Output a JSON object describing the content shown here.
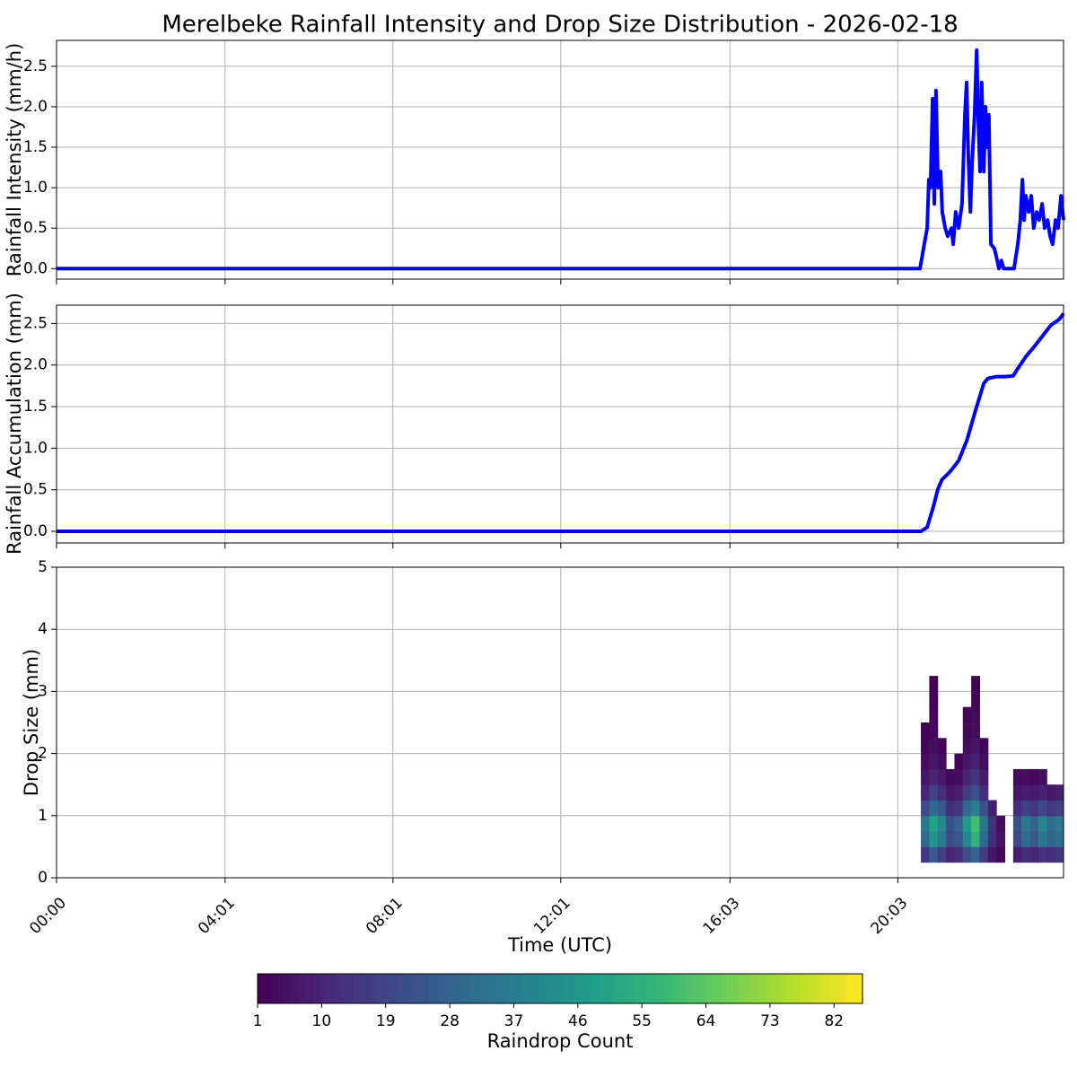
{
  "chart_data": [
    {
      "type": "line",
      "ylabel": "Rainfall Intensity (mm/h)",
      "color": "#0000ff",
      "grid": true,
      "xlim": [
        0,
        24
      ],
      "ylim": [
        -0.13,
        2.82
      ],
      "yticks": [
        {
          "value": 0,
          "label": "0.0"
        },
        0.5,
        {
          "value": 1,
          "label": "1.0"
        },
        1.5,
        {
          "value": 2,
          "label": "2.0"
        },
        2.5
      ],
      "x": [
        0,
        20.58,
        20.68,
        20.75,
        20.79,
        20.83,
        20.88,
        20.92,
        20.96,
        21.01,
        21.07,
        21.11,
        21.18,
        21.24,
        21.33,
        21.37,
        21.43,
        21.5,
        21.58,
        21.65,
        21.69,
        21.73,
        21.78,
        21.82,
        21.88,
        21.93,
        21.97,
        22.01,
        22.05,
        22.1,
        22.14,
        22.18,
        22.22,
        22.27,
        22.35,
        22.42,
        22.46,
        22.52,
        22.57,
        22.82,
        22.91,
        22.97,
        23.02,
        23.06,
        23.1,
        23.17,
        23.23,
        23.29,
        23.36,
        23.42,
        23.49,
        23.55,
        23.62,
        23.68,
        23.74,
        23.81,
        23.87,
        23.94,
        24.0
      ],
      "values": [
        0,
        0,
        0.3,
        0.5,
        1.1,
        1.0,
        2.1,
        0.8,
        2.2,
        1.0,
        1.2,
        0.7,
        0.5,
        0.4,
        0.5,
        0.3,
        0.7,
        0.5,
        0.8,
        1.9,
        2.3,
        1.4,
        0.7,
        1.3,
        1.9,
        2.7,
        1.8,
        1.2,
        2.3,
        1.2,
        2.0,
        1.5,
        1.9,
        0.3,
        0.25,
        0.1,
        0,
        0.1,
        0,
        0,
        0.3,
        0.6,
        1.1,
        0.6,
        0.9,
        0.7,
        0.9,
        0.5,
        0.7,
        0.6,
        0.8,
        0.5,
        0.6,
        0.4,
        0.3,
        0.6,
        0.5,
        0.9,
        0.6
      ]
    },
    {
      "type": "line",
      "ylabel": "Rainfall Accumulation (mm)",
      "color": "#0000ff",
      "grid": true,
      "xlim": [
        0,
        24
      ],
      "ylim": [
        -0.14,
        2.72
      ],
      "yticks": [
        {
          "value": 0,
          "label": "0.0"
        },
        0.5,
        {
          "value": 1,
          "label": "1.0"
        },
        1.5,
        {
          "value": 2,
          "label": "2.0"
        },
        2.5
      ],
      "x": [
        0,
        20.6,
        20.75,
        20.9,
        21.0,
        21.1,
        21.3,
        21.5,
        21.7,
        21.9,
        22.1,
        22.2,
        22.4,
        22.6,
        22.8,
        22.9,
        23.1,
        23.3,
        23.5,
        23.7,
        23.9,
        24.0
      ],
      "values": [
        0,
        0,
        0.05,
        0.3,
        0.5,
        0.62,
        0.72,
        0.85,
        1.1,
        1.45,
        1.78,
        1.84,
        1.86,
        1.86,
        1.87,
        1.95,
        2.1,
        2.22,
        2.35,
        2.48,
        2.55,
        2.62
      ]
    },
    {
      "type": "heatmap",
      "title": "Merelbeke Rainfall Intensity and Drop Size Distribution - 2026-02-18",
      "xlabel": "Time (UTC)",
      "ylabel": "Drop Size (mm)",
      "grid": true,
      "colormap": "viridis",
      "xlim": [
        0,
        24
      ],
      "ylim": [
        0,
        5
      ],
      "yticks": [
        0,
        1,
        2,
        3,
        4,
        5
      ],
      "xticks": [
        {
          "value": 0,
          "label": "00:00"
        },
        {
          "value": 4.017,
          "label": "04:01"
        },
        {
          "value": 8.017,
          "label": "08:01"
        },
        {
          "value": 12.017,
          "label": "12:01"
        },
        {
          "value": 16.05,
          "label": "16:03"
        },
        {
          "value": 20.05,
          "label": "20:03"
        }
      ],
      "x_bins": [
        20.6,
        20.8,
        21.0,
        21.2,
        21.4,
        21.6,
        21.8,
        22.0,
        22.2,
        22.4,
        22.6,
        22.8,
        23.0,
        23.2,
        23.4,
        23.6,
        23.8,
        24.0
      ],
      "y_bins": [
        0.25,
        0.5,
        0.75,
        1.0,
        1.25,
        1.5,
        1.75,
        2.0,
        2.25,
        2.5,
        2.75,
        3.0,
        3.25
      ],
      "values": [
        [
          15,
          25,
          18,
          10,
          12,
          22,
          28,
          16,
          6,
          3,
          null,
          8,
          12,
          10,
          14,
          12,
          15
        ],
        [
          30,
          45,
          35,
          20,
          25,
          40,
          55,
          30,
          12,
          5,
          null,
          20,
          30,
          25,
          35,
          28,
          32
        ],
        [
          35,
          50,
          40,
          22,
          28,
          48,
          60,
          35,
          14,
          4,
          null,
          22,
          35,
          28,
          40,
          30,
          35
        ],
        [
          20,
          30,
          25,
          12,
          15,
          30,
          38,
          22,
          8,
          null,
          null,
          12,
          18,
          15,
          20,
          15,
          18
        ],
        [
          10,
          18,
          12,
          6,
          8,
          16,
          22,
          12,
          null,
          null,
          null,
          6,
          8,
          7,
          9,
          6,
          8
        ],
        [
          6,
          10,
          7,
          3,
          4,
          10,
          14,
          7,
          null,
          null,
          null,
          3,
          4,
          3,
          4,
          null,
          null
        ],
        [
          4,
          6,
          4,
          null,
          2,
          6,
          9,
          4,
          null,
          null,
          null,
          null,
          null,
          null,
          null,
          null,
          null
        ],
        [
          2,
          4,
          2,
          null,
          null,
          4,
          6,
          2,
          null,
          null,
          null,
          null,
          null,
          null,
          null,
          null,
          null
        ],
        [
          1,
          3,
          null,
          null,
          null,
          3,
          4,
          null,
          null,
          null,
          null,
          null,
          null,
          null,
          null,
          null,
          null
        ],
        [
          null,
          2,
          null,
          null,
          null,
          2,
          3,
          null,
          null,
          null,
          null,
          null,
          null,
          null,
          null,
          null,
          null
        ],
        [
          null,
          1,
          null,
          null,
          null,
          null,
          2,
          null,
          null,
          null,
          null,
          null,
          null,
          null,
          null,
          null,
          null
        ],
        [
          null,
          1,
          null,
          null,
          null,
          null,
          1,
          null,
          null,
          null,
          null,
          null,
          null,
          null,
          null,
          null,
          null
        ]
      ],
      "colorbar": {
        "label": "Raindrop Count",
        "lim": [
          1,
          86
        ],
        "ticks": [
          1,
          10,
          19,
          28,
          37,
          46,
          55,
          64,
          73,
          82
        ]
      }
    }
  ]
}
